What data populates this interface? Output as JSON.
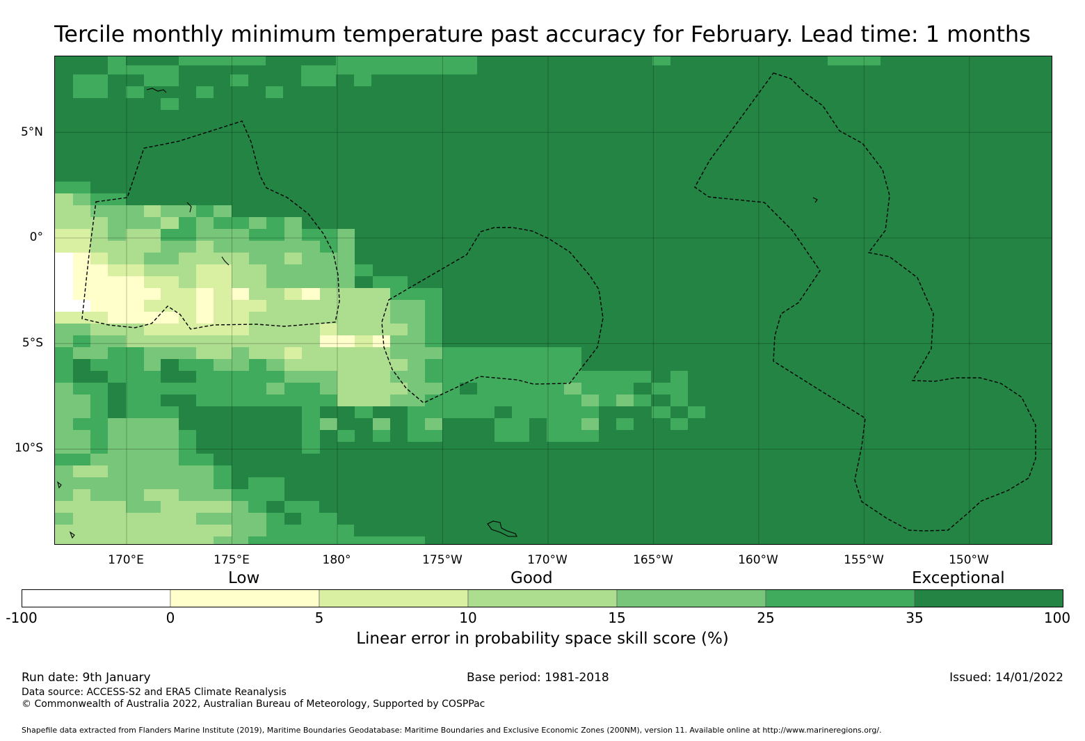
{
  "title": "Tercile monthly minimum temperature past accuracy for February. Lead time: 1 months",
  "map": {
    "lat_labels": [
      "5°N",
      "0°",
      "5°S",
      "10°S"
    ],
    "lon_labels": [
      "170°E",
      "175°E",
      "180°",
      "175°W",
      "170°W",
      "165°W",
      "160°W",
      "155°W",
      "150°W"
    ],
    "lon_range": [
      166.6,
      213.9
    ],
    "lat_range": [
      -14.5,
      8.6
    ],
    "grid_lons": [
      170,
      175,
      180,
      185,
      190,
      195,
      200,
      205,
      210
    ],
    "grid_lats": [
      5,
      0,
      -5,
      -10
    ],
    "cell_size_deg": 0.83,
    "background_color": "#238443"
  },
  "categories": {
    "low": "Low",
    "good": "Good",
    "exceptional": "Exceptional"
  },
  "colorbar": {
    "ticks": [
      "-100",
      "0",
      "5",
      "10",
      "15",
      "25",
      "35",
      "100"
    ],
    "colors": [
      "#ffffff",
      "#ffffcc",
      "#d9f0a3",
      "#addd8e",
      "#78c679",
      "#41ab5d",
      "#238443"
    ],
    "label": "Linear error in probability space skill score (%)"
  },
  "footer": {
    "run_date": "Run date: 9th January",
    "base_period": "Base period: 1981-2018",
    "issued": "Issued: 14/01/2022",
    "data_source": "Data source: ACCESS-S2 and ERA5 Climate Reanalysis",
    "copyright": "© Commonwealth of Australia 2022, Australian Bureau of Meteorology, Supported by COSPPac",
    "shapefile": "Shapefile data extracted from Flanders Marine Institute (2019), Maritime Boundaries Geodatabase: Maritime Boundaries and Exclusive Economic Zones (200NM), version 11. Available online at http://www.marineregions.org/."
  }
}
